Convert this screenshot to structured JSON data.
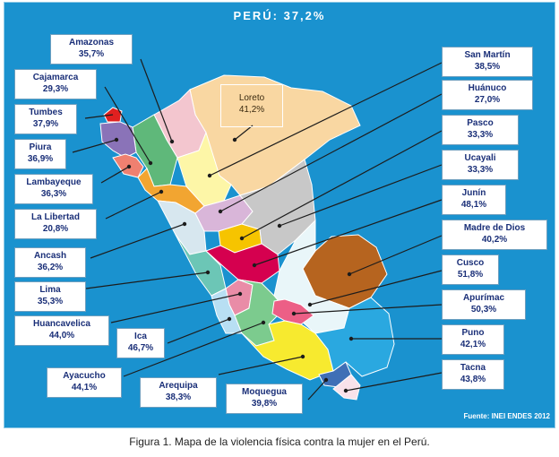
{
  "header": {
    "title": "PERÚ: 37,2%"
  },
  "regions": [
    {
      "id": "amazonas",
      "name": "Amazonas",
      "value": "35,7%",
      "color": "#f3c6cf"
    },
    {
      "id": "cajamarca",
      "name": "Cajamarca",
      "value": "29,3%",
      "color": "#5fb87a"
    },
    {
      "id": "tumbes",
      "name": "Tumbes",
      "value": "37,9%",
      "color": "#e02020"
    },
    {
      "id": "piura",
      "name": "Piura",
      "value": "36,9%",
      "color": "#8a73b8"
    },
    {
      "id": "lambayeque",
      "name": "Lambayeque",
      "value": "36,3%",
      "color": "#ef8070"
    },
    {
      "id": "la-libertad",
      "name": "La Libertad",
      "value": "20,8%",
      "color": "#f2a531"
    },
    {
      "id": "ancash",
      "name": "Ancash",
      "value": "36,2%",
      "color": "#d7e7ef"
    },
    {
      "id": "lima",
      "name": "Lima",
      "value": "35,3%",
      "color": "#6cc6b6"
    },
    {
      "id": "huancavelica",
      "name": "Huancavelica",
      "value": "44,0%",
      "color": "#e98ca7"
    },
    {
      "id": "ica",
      "name": "Ica",
      "value": "46,7%",
      "color": "#b8dff3"
    },
    {
      "id": "ayacucho",
      "name": "Ayacucho",
      "value": "44,1%",
      "color": "#7ccb8e"
    },
    {
      "id": "arequipa",
      "name": "Arequipa",
      "value": "38,3%",
      "color": "#f7ea2f"
    },
    {
      "id": "moquegua",
      "name": "Moquegua",
      "value": "39,8%",
      "color": "#3f6fb6"
    },
    {
      "id": "loreto",
      "name": "Loreto",
      "value": "41,2%",
      "color": "#f9d7a2"
    },
    {
      "id": "san-martin",
      "name": "San Martín",
      "value": "38,5%",
      "color": "#fdf6a7"
    },
    {
      "id": "huanuco",
      "name": "Huánuco",
      "value": "27,0%",
      "color": "#d9b6d9"
    },
    {
      "id": "pasco",
      "name": "Pasco",
      "value": "33,3%",
      "color": "#f6c400"
    },
    {
      "id": "ucayali",
      "name": "Ucayali",
      "value": "33,3%",
      "color": "#c8c8c8"
    },
    {
      "id": "junin",
      "name": "Junín",
      "value": "48,1%",
      "color": "#d5004f"
    },
    {
      "id": "madre-de-dios",
      "name": "Madre de Dios",
      "value": "40,2%",
      "color": "#b6641f"
    },
    {
      "id": "cusco",
      "name": "Cusco",
      "value": "51,8%",
      "color": "#e9f6f9"
    },
    {
      "id": "apurimac",
      "name": "Apurímac",
      "value": "50,3%",
      "color": "#ec5f86"
    },
    {
      "id": "puno",
      "name": "Puno",
      "value": "42,1%",
      "color": "#2aa8e0"
    },
    {
      "id": "tacna",
      "name": "Tacna",
      "value": "43,8%",
      "color": "#f9e2ea"
    }
  ],
  "colors": {
    "sea": "#1a92cf",
    "label_text": "#1a2f78",
    "leader": "#1c1c1c"
  },
  "source": "Fuente: INEI ENDES 2012",
  "caption": "Figura 1. Mapa de la violencia física contra la mujer en el Perú."
}
